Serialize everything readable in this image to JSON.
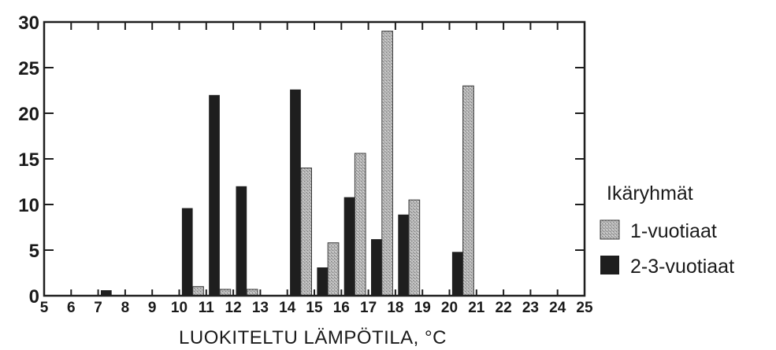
{
  "chart_data": {
    "type": "bar",
    "xlabel": "LUOKITELTU LÄMPÖTILA, °C",
    "ylabel": "",
    "title": "",
    "xlim": [
      5,
      25
    ],
    "ylim": [
      0,
      30
    ],
    "x_ticks": [
      "5",
      "6",
      "7",
      "8",
      "9",
      "10",
      "11",
      "12",
      "13",
      "14",
      "15",
      "16",
      "17",
      "18",
      "19",
      "20",
      "21",
      "22",
      "23",
      "24",
      "25"
    ],
    "y_ticks": [
      "0",
      "5",
      "10",
      "15",
      "20",
      "25",
      "30"
    ],
    "legend_title": "Ikäryhmät",
    "legend_position": "right",
    "series": [
      {
        "name": "1-vuotiaat",
        "color": "#a8a8a8",
        "points": [
          {
            "x": 10.5,
            "y": 1
          },
          {
            "x": 11.5,
            "y": 0.7
          },
          {
            "x": 12.5,
            "y": 0.7
          },
          {
            "x": 14.5,
            "y": 14
          },
          {
            "x": 15.5,
            "y": 5.8
          },
          {
            "x": 16.5,
            "y": 15.6
          },
          {
            "x": 17.5,
            "y": 29
          },
          {
            "x": 18.5,
            "y": 10.5
          },
          {
            "x": 20.5,
            "y": 23
          }
        ]
      },
      {
        "name": "2-3-vuotiaat",
        "color": "#1e1e1e",
        "points": [
          {
            "x": 7.5,
            "y": 0.6
          },
          {
            "x": 10.5,
            "y": 9.6
          },
          {
            "x": 11.5,
            "y": 22
          },
          {
            "x": 12.5,
            "y": 12
          },
          {
            "x": 14.5,
            "y": 22.6
          },
          {
            "x": 15.5,
            "y": 3.1
          },
          {
            "x": 16.5,
            "y": 10.8
          },
          {
            "x": 17.5,
            "y": 6.2
          },
          {
            "x": 18.5,
            "y": 8.9
          },
          {
            "x": 20.5,
            "y": 4.8
          }
        ]
      }
    ]
  }
}
